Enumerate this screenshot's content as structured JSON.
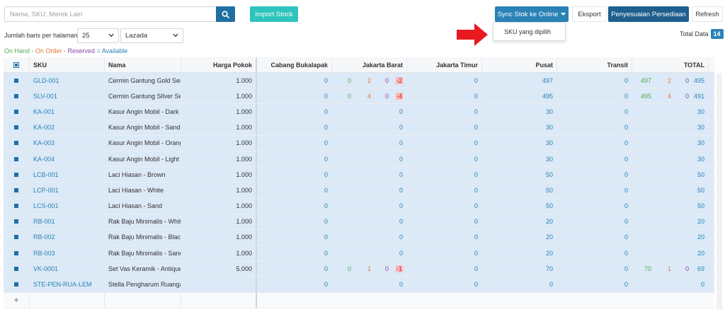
{
  "toolbar": {
    "search_placeholder": "Nama, SKU, Merek Lain",
    "import_label": "Import Stock",
    "sync_label": "Sync Stok ke Online",
    "export_label": "Eksport",
    "adjust_label": "Penyesuaian Persediaan",
    "refresh_label": "Refresh"
  },
  "sync_menu": {
    "items": [
      "SKU yang dipilih"
    ]
  },
  "controls": {
    "rows_label": "Jumlah baris per halaman",
    "rows_value": "25",
    "channel_value": "Lazada",
    "total_label": "Total Data",
    "total_value": "14"
  },
  "legend": {
    "on_hand": "On Hand",
    "on_order": "On Order",
    "reserved": "Reserved",
    "available": "Available",
    "sep": " - ",
    "eq": " = ",
    "colors": {
      "on_hand": "#4caf50",
      "on_order": "#e07a35",
      "reserved": "#8e44ad",
      "available": "#2a82b6"
    }
  },
  "table": {
    "headers": [
      "SKU",
      "Nama",
      "Harga Pokok",
      "Cabang Bukalapak",
      "Jakarta Barat",
      "Jakarta Timur",
      "Pusat",
      "Transit",
      "TOTAL"
    ],
    "rows": [
      {
        "sku": "GLD-001",
        "nama": "Cermin Gantung Gold Serie",
        "harga": "1.000",
        "cabang": "0",
        "jakbar": [
          "0",
          "2",
          "0",
          "-2"
        ],
        "jaktim": "0",
        "pusat": "497",
        "transit": "0",
        "total": [
          "497",
          "2",
          "0",
          "495"
        ]
      },
      {
        "sku": "SLV-001",
        "nama": "Cermin Gantung Silver Seri",
        "harga": "1.000",
        "cabang": "0",
        "jakbar": [
          "0",
          "4",
          "0",
          "-4"
        ],
        "jaktim": "0",
        "pusat": "495",
        "transit": "0",
        "total": [
          "495",
          "4",
          "0",
          "491"
        ]
      },
      {
        "sku": "KA-001",
        "nama": "Kasur Angin Mobil - Dark b",
        "harga": "1.000",
        "cabang": "0",
        "jakbar": "0",
        "jaktim": "0",
        "pusat": "30",
        "transit": "0",
        "total": "30"
      },
      {
        "sku": "KA-002",
        "nama": "Kasur Angin Mobil - Sand",
        "harga": "1.000",
        "cabang": "0",
        "jakbar": "0",
        "jaktim": "0",
        "pusat": "30",
        "transit": "0",
        "total": "30"
      },
      {
        "sku": "KA-003",
        "nama": "Kasur Angin Mobil - Orang",
        "harga": "1.000",
        "cabang": "0",
        "jakbar": "0",
        "jaktim": "0",
        "pusat": "30",
        "transit": "0",
        "total": "30"
      },
      {
        "sku": "KA-004",
        "nama": "Kasur Angin Mobil - Light b",
        "harga": "1.000",
        "cabang": "0",
        "jakbar": "0",
        "jaktim": "0",
        "pusat": "30",
        "transit": "0",
        "total": "30"
      },
      {
        "sku": "LCB-001",
        "nama": "Laci Hiasan - Brown",
        "harga": "1.000",
        "cabang": "0",
        "jakbar": "0",
        "jaktim": "0",
        "pusat": "50",
        "transit": "0",
        "total": "50"
      },
      {
        "sku": "LCP-001",
        "nama": "Laci Hiasan - White",
        "harga": "1.000",
        "cabang": "0",
        "jakbar": "0",
        "jaktim": "0",
        "pusat": "50",
        "transit": "0",
        "total": "50"
      },
      {
        "sku": "LCS-001",
        "nama": "Laci Hiasan - Sand",
        "harga": "1.000",
        "cabang": "0",
        "jakbar": "0",
        "jaktim": "0",
        "pusat": "50",
        "transit": "0",
        "total": "50"
      },
      {
        "sku": "RB-001",
        "nama": "Rak Baju Minimalis - White",
        "harga": "1.000",
        "cabang": "0",
        "jakbar": "0",
        "jaktim": "0",
        "pusat": "20",
        "transit": "0",
        "total": "20"
      },
      {
        "sku": "RB-002",
        "nama": "Rak Baju Minimalis - Black",
        "harga": "1.000",
        "cabang": "0",
        "jakbar": "0",
        "jaktim": "0",
        "pusat": "20",
        "transit": "0",
        "total": "20"
      },
      {
        "sku": "RB-003",
        "nama": "Rak Baju Minimalis - Sand",
        "harga": "1.000",
        "cabang": "0",
        "jakbar": "0",
        "jaktim": "0",
        "pusat": "20",
        "transit": "0",
        "total": "20"
      },
      {
        "sku": "VK-0001",
        "nama": "Set Vas Keramik - Antique",
        "harga": "5.000",
        "cabang": "0",
        "jakbar": [
          "0",
          "1",
          "0",
          "-1"
        ],
        "jaktim": "0",
        "pusat": "70",
        "transit": "0",
        "total": [
          "70",
          "1",
          "0",
          "69"
        ]
      },
      {
        "sku": "STE-PEN-RUA-LEM",
        "nama": "Stella Pengharum Ruangar",
        "harga": "",
        "cabang": "0",
        "jakbar": "0",
        "jaktim": "0",
        "pusat": "0",
        "transit": "0",
        "total": "0"
      }
    ],
    "add_row_label": "+"
  }
}
